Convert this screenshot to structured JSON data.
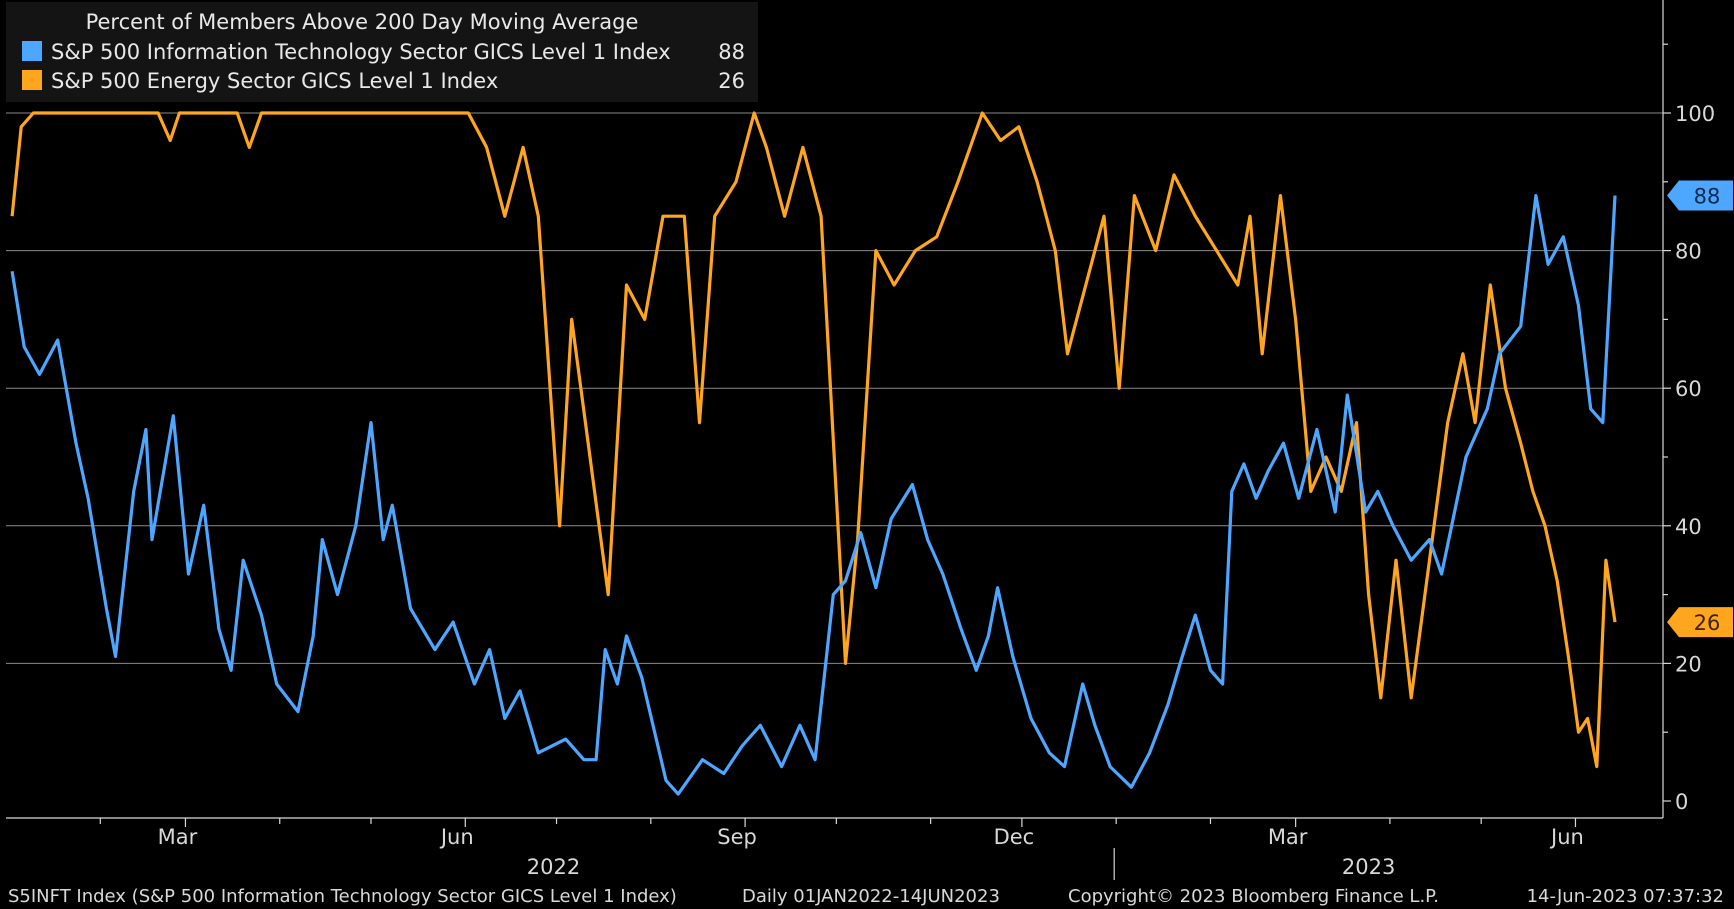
{
  "chart_data": {
    "type": "line",
    "title": "Percent of Members Above 200 Day Moving Average",
    "ylim": [
      0,
      100
    ],
    "y_ticks": [
      "0",
      "20",
      "40",
      "60",
      "80",
      "100"
    ],
    "grid": true,
    "legend": "top-left",
    "x_month_labels": [
      "Mar",
      "Jun",
      "Sep",
      "Dec",
      "Mar",
      "Jun"
    ],
    "year_labels": [
      "2022",
      "2023"
    ],
    "x_range": [
      "2022-01-01",
      "2023-06-14"
    ],
    "series": [
      {
        "name": "S&P 500 Information Technology Sector GICS Level 1 Index",
        "last_value": "88",
        "color": "#4da6ff",
        "points": [
          [
            "2022-01-03",
            77
          ],
          [
            "2022-01-07",
            66
          ],
          [
            "2022-01-12",
            62
          ],
          [
            "2022-01-18",
            67
          ],
          [
            "2022-01-24",
            52
          ],
          [
            "2022-01-28",
            44
          ],
          [
            "2022-02-03",
            28
          ],
          [
            "2022-02-06",
            21
          ],
          [
            "2022-02-12",
            45
          ],
          [
            "2022-02-16",
            54
          ],
          [
            "2022-02-18",
            38
          ],
          [
            "2022-02-25",
            56
          ],
          [
            "2022-03-02",
            33
          ],
          [
            "2022-03-07",
            43
          ],
          [
            "2022-03-12",
            25
          ],
          [
            "2022-03-16",
            19
          ],
          [
            "2022-03-20",
            35
          ],
          [
            "2022-03-26",
            27
          ],
          [
            "2022-03-31",
            17
          ],
          [
            "2022-04-07",
            13
          ],
          [
            "2022-04-12",
            24
          ],
          [
            "2022-04-15",
            38
          ],
          [
            "2022-04-20",
            30
          ],
          [
            "2022-04-26",
            40
          ],
          [
            "2022-05-01",
            55
          ],
          [
            "2022-05-05",
            38
          ],
          [
            "2022-05-08",
            43
          ],
          [
            "2022-05-14",
            28
          ],
          [
            "2022-05-22",
            22
          ],
          [
            "2022-05-28",
            26
          ],
          [
            "2022-06-04",
            17
          ],
          [
            "2022-06-09",
            22
          ],
          [
            "2022-06-14",
            12
          ],
          [
            "2022-06-19",
            16
          ],
          [
            "2022-06-25",
            7
          ],
          [
            "2022-07-04",
            9
          ],
          [
            "2022-07-10",
            6
          ],
          [
            "2022-07-14",
            6
          ],
          [
            "2022-07-17",
            22
          ],
          [
            "2022-07-21",
            17
          ],
          [
            "2022-07-24",
            24
          ],
          [
            "2022-07-29",
            18
          ],
          [
            "2022-08-06",
            3
          ],
          [
            "2022-08-10",
            1
          ],
          [
            "2022-08-18",
            6
          ],
          [
            "2022-08-25",
            4
          ],
          [
            "2022-08-31",
            8
          ],
          [
            "2022-09-06",
            11
          ],
          [
            "2022-09-13",
            5
          ],
          [
            "2022-09-19",
            11
          ],
          [
            "2022-09-24",
            6
          ],
          [
            "2022-09-30",
            30
          ],
          [
            "2022-10-04",
            32
          ],
          [
            "2022-10-09",
            39
          ],
          [
            "2022-10-14",
            31
          ],
          [
            "2022-10-19",
            41
          ],
          [
            "2022-10-26",
            46
          ],
          [
            "2022-10-31",
            38
          ],
          [
            "2022-11-05",
            33
          ],
          [
            "2022-11-11",
            25
          ],
          [
            "2022-11-16",
            19
          ],
          [
            "2022-11-20",
            24
          ],
          [
            "2022-11-23",
            31
          ],
          [
            "2022-11-28",
            21
          ],
          [
            "2022-12-04",
            12
          ],
          [
            "2022-12-10",
            7
          ],
          [
            "2022-12-15",
            5
          ],
          [
            "2022-12-21",
            17
          ],
          [
            "2022-12-25",
            11
          ],
          [
            "2022-12-30",
            5
          ],
          [
            "2023-01-06",
            2
          ],
          [
            "2023-01-12",
            7
          ],
          [
            "2023-01-18",
            14
          ],
          [
            "2023-01-22",
            20
          ],
          [
            "2023-01-27",
            27
          ],
          [
            "2023-02-01",
            19
          ],
          [
            "2023-02-05",
            17
          ],
          [
            "2023-02-08",
            45
          ],
          [
            "2023-02-12",
            49
          ],
          [
            "2023-02-16",
            44
          ],
          [
            "2023-02-20",
            48
          ],
          [
            "2023-02-25",
            52
          ],
          [
            "2023-03-02",
            44
          ],
          [
            "2023-03-08",
            54
          ],
          [
            "2023-03-14",
            42
          ],
          [
            "2023-03-18",
            59
          ],
          [
            "2023-03-24",
            42
          ],
          [
            "2023-03-28",
            45
          ],
          [
            "2023-04-02",
            40
          ],
          [
            "2023-04-08",
            35
          ],
          [
            "2023-04-14",
            38
          ],
          [
            "2023-04-18",
            33
          ],
          [
            "2023-04-26",
            50
          ],
          [
            "2023-05-03",
            57
          ],
          [
            "2023-05-07",
            65
          ],
          [
            "2023-05-14",
            69
          ],
          [
            "2023-05-19",
            88
          ],
          [
            "2023-05-23",
            78
          ],
          [
            "2023-05-28",
            82
          ],
          [
            "2023-06-02",
            72
          ],
          [
            "2023-06-06",
            57
          ],
          [
            "2023-06-10",
            55
          ],
          [
            "2023-06-14",
            88
          ]
        ]
      },
      {
        "name": "S&P 500 Energy Sector GICS Level 1 Index",
        "last_value": "26",
        "color": "#ffa51e",
        "points": [
          [
            "2022-01-03",
            85
          ],
          [
            "2022-01-06",
            98
          ],
          [
            "2022-01-10",
            100
          ],
          [
            "2022-02-20",
            100
          ],
          [
            "2022-02-24",
            96
          ],
          [
            "2022-02-27",
            100
          ],
          [
            "2022-03-18",
            100
          ],
          [
            "2022-03-22",
            95
          ],
          [
            "2022-03-26",
            100
          ],
          [
            "2022-05-26",
            100
          ],
          [
            "2022-06-02",
            100
          ],
          [
            "2022-06-08",
            95
          ],
          [
            "2022-06-14",
            85
          ],
          [
            "2022-06-20",
            95
          ],
          [
            "2022-06-25",
            85
          ],
          [
            "2022-07-02",
            40
          ],
          [
            "2022-07-06",
            70
          ],
          [
            "2022-07-12",
            50
          ],
          [
            "2022-07-18",
            30
          ],
          [
            "2022-07-24",
            75
          ],
          [
            "2022-07-30",
            70
          ],
          [
            "2022-08-05",
            85
          ],
          [
            "2022-08-12",
            85
          ],
          [
            "2022-08-17",
            55
          ],
          [
            "2022-08-22",
            85
          ],
          [
            "2022-08-29",
            90
          ],
          [
            "2022-09-04",
            100
          ],
          [
            "2022-09-08",
            95
          ],
          [
            "2022-09-14",
            85
          ],
          [
            "2022-09-20",
            95
          ],
          [
            "2022-09-26",
            85
          ],
          [
            "2022-10-04",
            20
          ],
          [
            "2022-10-08",
            38
          ],
          [
            "2022-10-14",
            80
          ],
          [
            "2022-10-20",
            75
          ],
          [
            "2022-10-27",
            80
          ],
          [
            "2022-11-03",
            82
          ],
          [
            "2022-11-10",
            90
          ],
          [
            "2022-11-18",
            100
          ],
          [
            "2022-11-24",
            96
          ],
          [
            "2022-11-30",
            98
          ],
          [
            "2022-12-06",
            90
          ],
          [
            "2022-12-12",
            80
          ],
          [
            "2022-12-16",
            65
          ],
          [
            "2022-12-22",
            75
          ],
          [
            "2022-12-28",
            85
          ],
          [
            "2023-01-02",
            60
          ],
          [
            "2023-01-07",
            88
          ],
          [
            "2023-01-14",
            80
          ],
          [
            "2023-01-20",
            91
          ],
          [
            "2023-01-27",
            85
          ],
          [
            "2023-02-03",
            80
          ],
          [
            "2023-02-10",
            75
          ],
          [
            "2023-02-14",
            85
          ],
          [
            "2023-02-18",
            65
          ],
          [
            "2023-02-24",
            88
          ],
          [
            "2023-03-01",
            70
          ],
          [
            "2023-03-06",
            45
          ],
          [
            "2023-03-11",
            50
          ],
          [
            "2023-03-16",
            45
          ],
          [
            "2023-03-21",
            55
          ],
          [
            "2023-03-25",
            30
          ],
          [
            "2023-03-29",
            15
          ],
          [
            "2023-04-03",
            35
          ],
          [
            "2023-04-08",
            15
          ],
          [
            "2023-04-14",
            35
          ],
          [
            "2023-04-20",
            55
          ],
          [
            "2023-04-25",
            65
          ],
          [
            "2023-04-29",
            55
          ],
          [
            "2023-05-04",
            75
          ],
          [
            "2023-05-09",
            60
          ],
          [
            "2023-05-14",
            52
          ],
          [
            "2023-05-18",
            45
          ],
          [
            "2023-05-22",
            40
          ],
          [
            "2023-05-26",
            32
          ],
          [
            "2023-05-30",
            20
          ],
          [
            "2023-06-02",
            10
          ],
          [
            "2023-06-05",
            12
          ],
          [
            "2023-06-08",
            5
          ],
          [
            "2023-06-11",
            35
          ],
          [
            "2023-06-14",
            26
          ]
        ]
      }
    ]
  },
  "footer": {
    "security": "S5INFT Index (S&P 500 Information Technology Sector GICS Level 1 Index)",
    "range": "Daily 01JAN2022-14JUN2023",
    "copyright": "Copyright© 2023 Bloomberg Finance L.P.",
    "timestamp": "14-Jun-2023 07:37:32"
  }
}
